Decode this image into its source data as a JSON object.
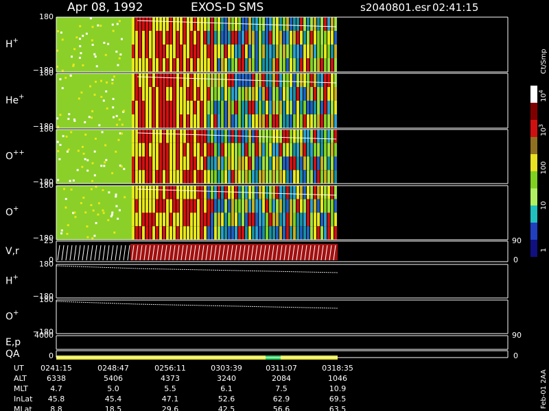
{
  "header": {
    "date": "Apr 08, 1992",
    "instrument": "EXOS-D SMS",
    "file": "s2040801.esr",
    "time": "02:41:15"
  },
  "panels": [
    {
      "label": "H",
      "sup": "+",
      "top": "180",
      "bottom": "−180",
      "kind": "spectrogram"
    },
    {
      "label": "He",
      "sup": "+",
      "top": "180",
      "bottom": "−180",
      "kind": "spectrogram"
    },
    {
      "label": "O",
      "sup": "++",
      "top": "180",
      "bottom": "−180",
      "kind": "spectrogram"
    },
    {
      "label": "O",
      "sup": "+",
      "top": "180",
      "bottom": "−180",
      "kind": "spectrogram"
    },
    {
      "label": "V,r",
      "top": "25",
      "bottom": "0",
      "right_top": "90",
      "right_bottom": "0",
      "kind": "velocity"
    },
    {
      "label": "H",
      "sup": "+",
      "top": "180",
      "bottom": "−180",
      "kind": "line"
    },
    {
      "label": "O",
      "sup": "+",
      "top": "180",
      "bottom": "−180",
      "kind": "line"
    },
    {
      "label": "E,p",
      "top": "4000",
      "right_top": "90",
      "kind": "empty"
    },
    {
      "label": "QA",
      "bottom": "0",
      "right_bottom": "0",
      "kind": "qa"
    }
  ],
  "colorbar": {
    "unit": "Ct/Smp",
    "labels": [
      {
        "base": "10",
        "exp": "4"
      },
      {
        "base": "10",
        "exp": "3"
      },
      {
        "base": "100"
      },
      {
        "base": "10"
      },
      {
        "base": "1"
      }
    ]
  },
  "table": {
    "rows": [
      [
        "UT",
        "0241:15",
        "0248:47",
        "0256:11",
        "0303:39",
        "0311:07",
        "0318:35"
      ],
      [
        "ALT",
        "6338",
        "5406",
        "4373",
        "3240",
        "2084",
        "1046"
      ],
      [
        "MLT",
        "4.7",
        "5.0",
        "5.5",
        "6.1",
        "7.5",
        "10.9"
      ],
      [
        "InLat",
        "45.8",
        "45.4",
        "47.1",
        "52.6",
        "62.9",
        "69.5"
      ],
      [
        "MLat",
        "8.8",
        "18.5",
        "29.6",
        "42.5",
        "56.6",
        "63.5"
      ]
    ]
  },
  "footer": "Feb-01 2AA"
}
